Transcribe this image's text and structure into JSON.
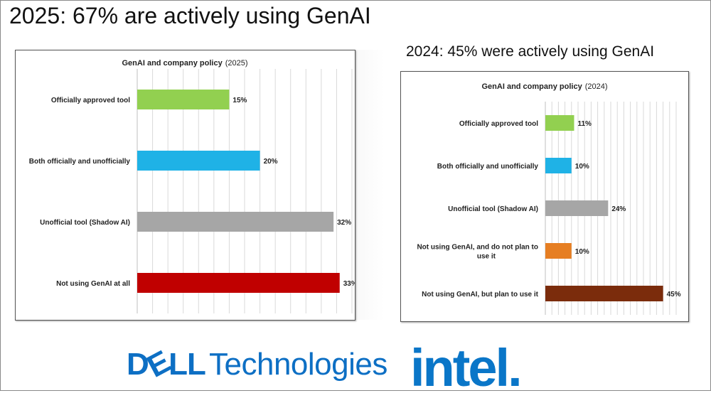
{
  "header": {
    "left_title": "2025: 67% are actively using GenAI",
    "right_title": "2024: 45% were actively using GenAI"
  },
  "chart_data": [
    {
      "type": "bar",
      "orientation": "horizontal",
      "title": "GenAI and company policy",
      "subtitle": "(2025)",
      "categories": [
        "Officially approved tool",
        "Both officially and unofficially",
        "Unofficial tool (Shadow AI)",
        "Not using GenAI at all"
      ],
      "values": [
        15,
        20,
        32,
        33
      ],
      "value_labels": [
        "15%",
        "20%",
        "32%",
        "33%"
      ],
      "colors": [
        "#92d050",
        "#1fb2e6",
        "#a6a6a6",
        "#c00000"
      ],
      "xlim": [
        0,
        35
      ],
      "grid": true
    },
    {
      "type": "bar",
      "orientation": "horizontal",
      "title": "GenAI and company policy",
      "subtitle": "(2024)",
      "categories": [
        "Officially approved tool",
        "Both officially and unofficially",
        "Unofficial tool (Shadow AI)",
        "Not using GenAI, and do not plan to use it",
        "Not using GenAI, but plan to use it"
      ],
      "category_lines": [
        [
          "Officially approved tool"
        ],
        [
          "Both officially and unofficially"
        ],
        [
          "Unofficial tool (Shadow AI)"
        ],
        [
          "Not using GenAI, and do not plan to",
          "use it"
        ],
        [
          "Not using GenAI, but plan to use it"
        ]
      ],
      "values": [
        11,
        10,
        24,
        10,
        45
      ],
      "value_labels": [
        "11%",
        "10%",
        "24%",
        "10%",
        "45%"
      ],
      "colors": [
        "#92d050",
        "#1fb2e6",
        "#a6a6a6",
        "#e67e22",
        "#7b2c0c"
      ],
      "xlim": [
        0,
        50
      ],
      "grid": true
    }
  ],
  "footer": {
    "dell_brand": "D",
    "dell_brand_rest": "LL",
    "dell_sub": "Technologies",
    "intel": "intel."
  }
}
